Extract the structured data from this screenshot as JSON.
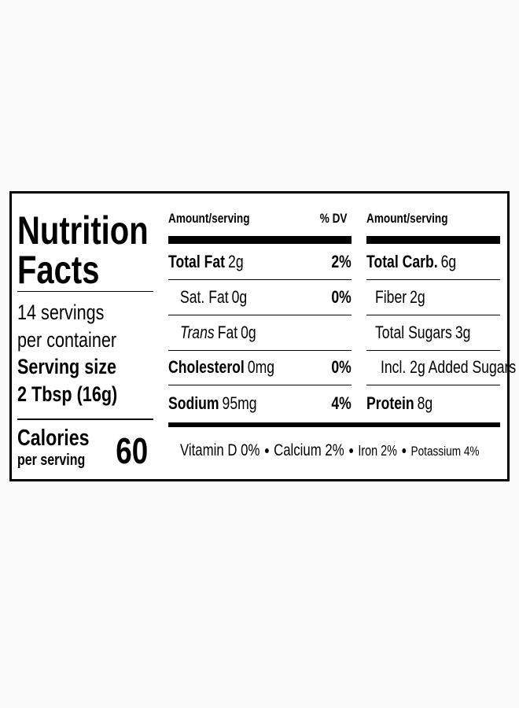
{
  "title": [
    "Nutrition",
    "Facts"
  ],
  "servings": [
    "14 servings",
    "per container"
  ],
  "serving_size": {
    "label": "Serving size",
    "value": "2 Tbsp (16g)"
  },
  "calories": {
    "label": "Calories",
    "sublabel": "per serving",
    "value": 60
  },
  "header": {
    "amount": "Amount/serving",
    "dv": "% DV",
    "amount_right": "Amount/serving"
  },
  "left_rows": [
    {
      "name": "Total Fat",
      "amount": "2g",
      "dv": "2%"
    },
    {
      "name": "Sat. Fat",
      "amount": "0g",
      "dv": "0%"
    },
    {
      "name_italic": "Trans",
      "name": "Fat",
      "amount": "0g"
    },
    {
      "name": "Cholesterol",
      "amount": "0mg",
      "dv": "0%"
    },
    {
      "name": "Sodium",
      "amount": "95mg",
      "dv": "4%"
    }
  ],
  "right_rows": [
    {
      "name": "Total Carb.",
      "amount": "6g"
    },
    {
      "name": "Fiber",
      "amount": "2g"
    },
    {
      "name": "Total Sugars",
      "amount": "3g"
    },
    {
      "name": "Incl. 2g Added Sugars"
    },
    {
      "name": "Protein",
      "amount": "8g"
    }
  ],
  "footer": [
    "Vitamin D 0%",
    "Calcium 2%",
    "Iron 2%",
    "Potassium 4%"
  ]
}
